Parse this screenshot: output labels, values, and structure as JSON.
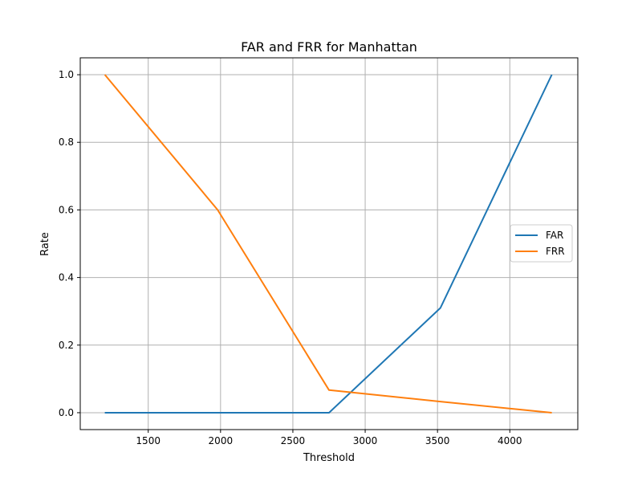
{
  "chart_data": {
    "type": "line",
    "title": "FAR and FRR for Manhattan",
    "xlabel": "Threshold",
    "ylabel": "Rate",
    "xlim": [
      1030,
      4470
    ],
    "ylim": [
      -0.05,
      1.05
    ],
    "xticks": [
      1500,
      2000,
      2500,
      3000,
      3500,
      4000
    ],
    "yticks": [
      0.0,
      0.2,
      0.4,
      0.6,
      0.8,
      1.0
    ],
    "xtick_labels": [
      "1500",
      "2000",
      "2500",
      "3000",
      "3500",
      "4000"
    ],
    "ytick_labels": [
      "0.0",
      "0.2",
      "0.4",
      "0.6",
      "0.8",
      "1.0"
    ],
    "grid": true,
    "legend_position": "center-right",
    "series": [
      {
        "name": "FAR",
        "color": "#1f77b4",
        "x": [
          1200,
          1980,
          2750,
          3520,
          4290
        ],
        "y": [
          0.0,
          0.0,
          0.0,
          0.31,
          1.0
        ]
      },
      {
        "name": "FRR",
        "color": "#ff7f0e",
        "x": [
          1200,
          1980,
          2750,
          3520,
          4290
        ],
        "y": [
          1.0,
          0.6,
          0.067,
          0.033,
          0.0
        ]
      }
    ]
  }
}
